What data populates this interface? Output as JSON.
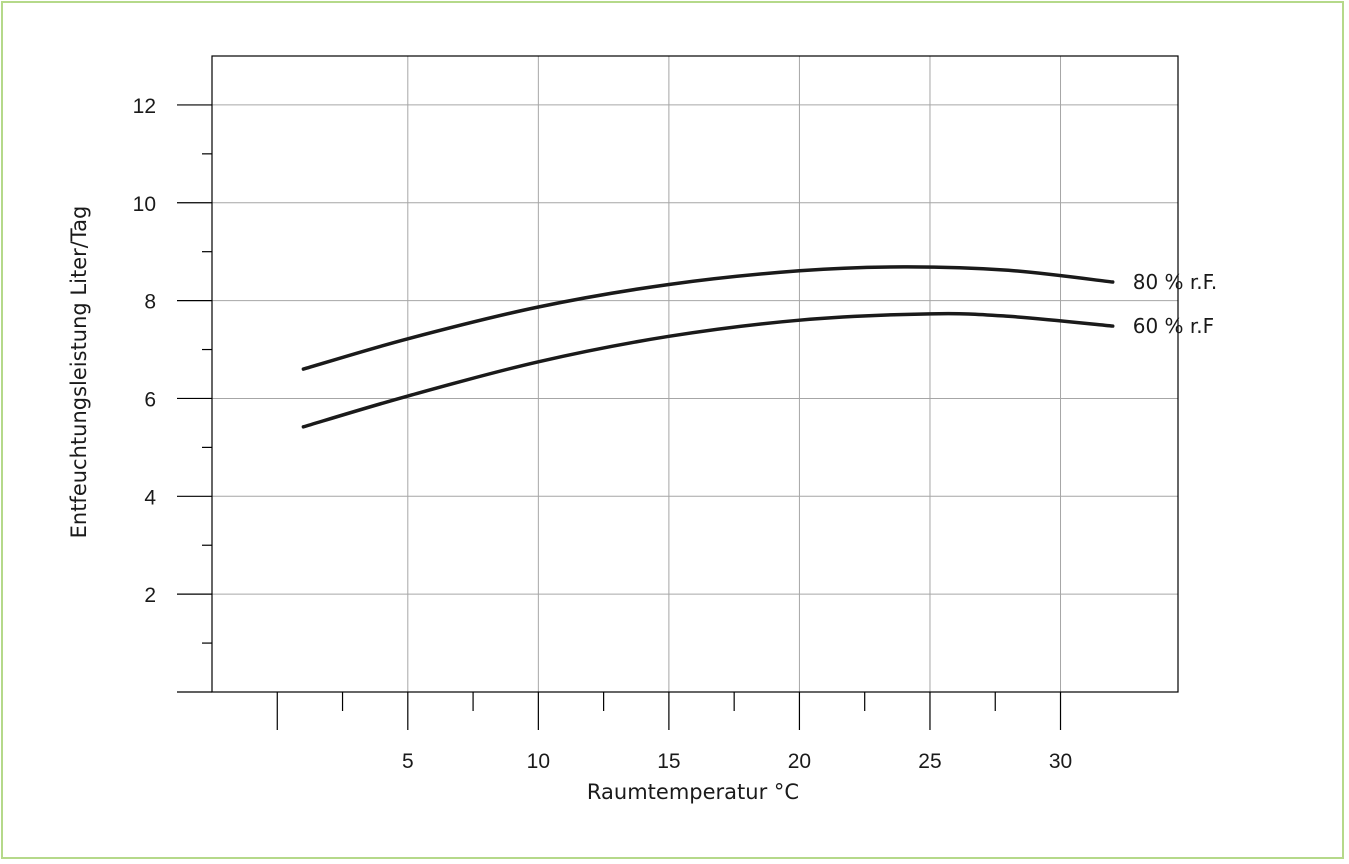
{
  "colors": {
    "frame": "#b5d98a",
    "grid": "#a6a6a6",
    "axis": "#000000",
    "curve": "#1a1a1a"
  },
  "chart_data": {
    "type": "line",
    "title": "",
    "xlabel": "Raumtemperatur °C",
    "ylabel": "Entfeuchtungsleistung Liter/Tag",
    "xlim": [
      -2.5,
      34.5
    ],
    "ylim": [
      0,
      13
    ],
    "grid": true,
    "x_ticks_major": [
      5,
      10,
      15,
      20,
      25,
      30
    ],
    "x_ticks_minor": [
      0,
      2.5,
      7.5,
      12.5,
      17.5,
      22.5,
      27.5
    ],
    "y_ticks_major": [
      2,
      4,
      6,
      8,
      10,
      12
    ],
    "y_ticks_minor": [
      1,
      3,
      5,
      7,
      9,
      11
    ],
    "series": [
      {
        "name": "80 % r.F.",
        "x": [
          1,
          5,
          10,
          15,
          20,
          24,
          28,
          32
        ],
        "y": [
          6.6,
          7.22,
          7.87,
          8.33,
          8.61,
          8.69,
          8.62,
          8.38
        ]
      },
      {
        "name": "60 % r.F",
        "x": [
          1,
          5,
          10,
          15,
          20,
          25,
          28,
          32
        ],
        "y": [
          5.42,
          6.05,
          6.75,
          7.27,
          7.6,
          7.73,
          7.68,
          7.48
        ]
      }
    ]
  }
}
